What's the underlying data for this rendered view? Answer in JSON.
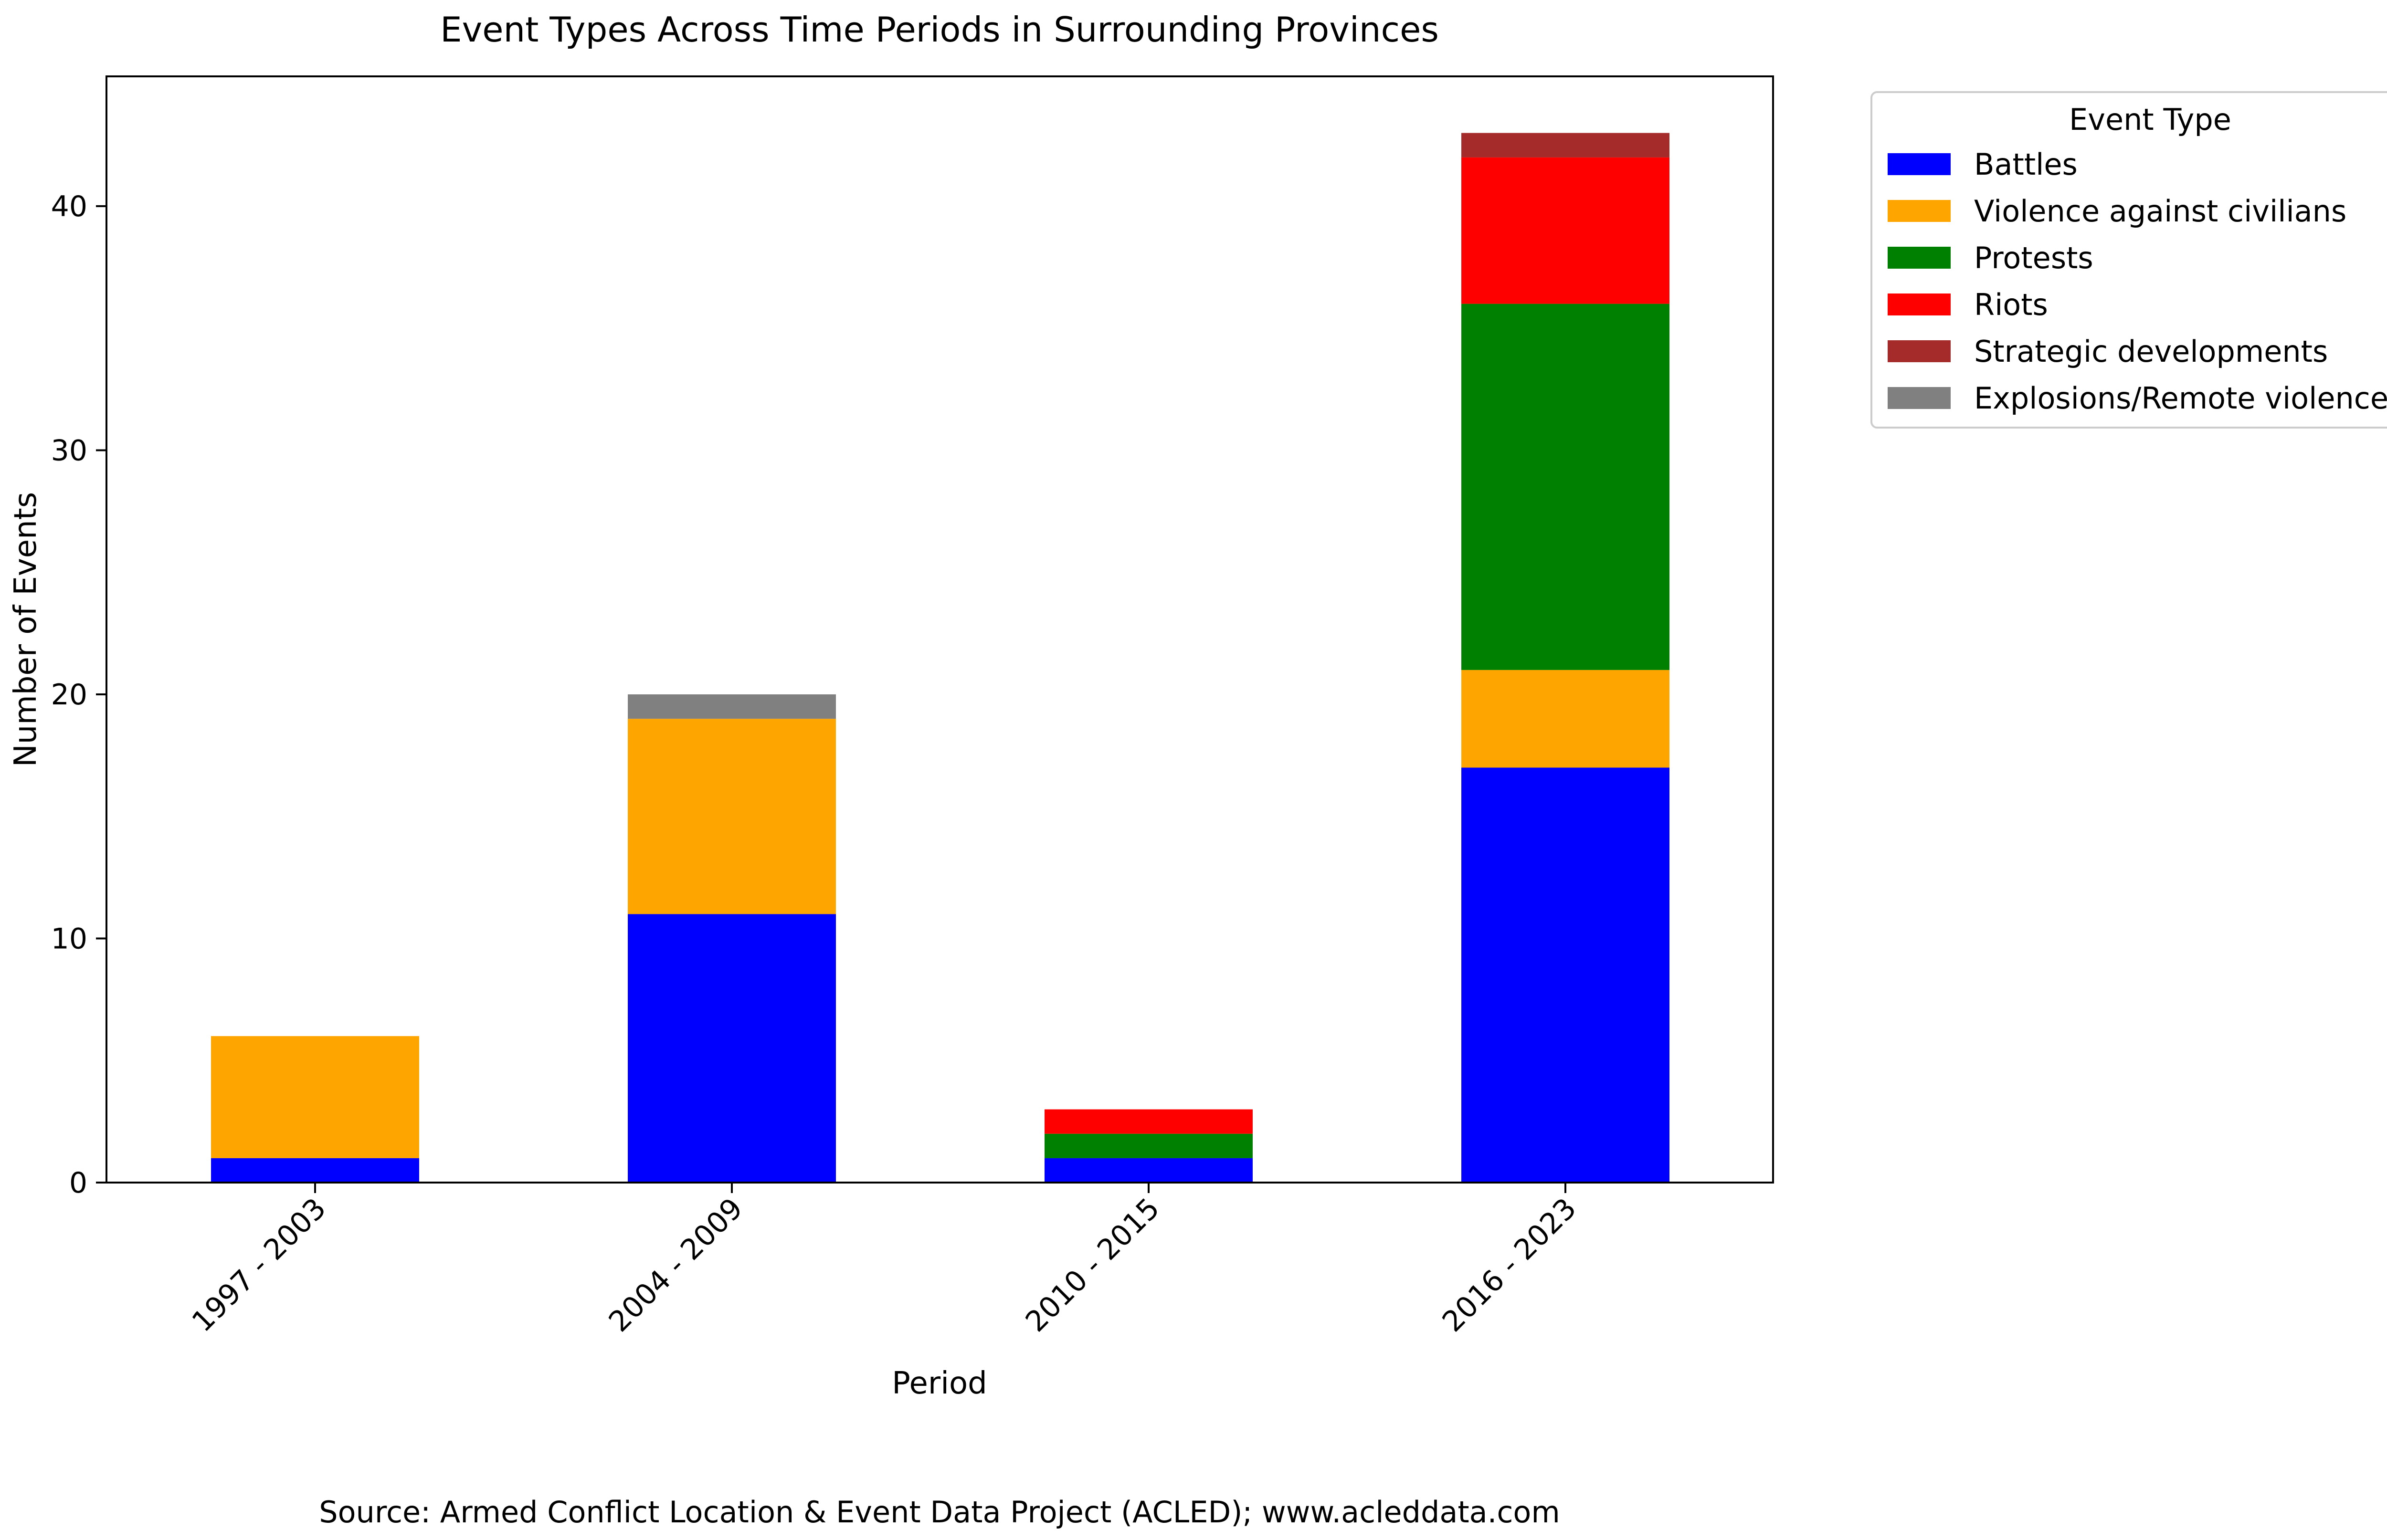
{
  "chart_data": {
    "type": "bar",
    "stacked": true,
    "title": "Event Types Across Time Periods in Surrounding Provinces",
    "xlabel": "Period",
    "ylabel": "Number of Events",
    "categories": [
      "1997 - 2003",
      "2004 - 2009",
      "2010 - 2015",
      "2016 - 2023"
    ],
    "yticks": [
      0,
      10,
      20,
      30,
      40
    ],
    "ylim": [
      0,
      45
    ],
    "grid": false,
    "legend": {
      "title": "Event Type",
      "placement": "outside-right-top"
    },
    "series": [
      {
        "name": "Battles",
        "color": "#0000ff",
        "values": [
          1,
          11,
          1,
          17
        ]
      },
      {
        "name": "Violence against civilians",
        "color": "#ffa500",
        "values": [
          5,
          8,
          0,
          4
        ]
      },
      {
        "name": "Protests",
        "color": "#008000",
        "values": [
          0,
          0,
          1,
          15
        ]
      },
      {
        "name": "Riots",
        "color": "#ff0000",
        "values": [
          0,
          0,
          1,
          6
        ]
      },
      {
        "name": "Strategic developments",
        "color": "#a52a2a",
        "values": [
          0,
          0,
          0,
          1
        ]
      },
      {
        "name": "Explosions/Remote violence",
        "color": "#808080",
        "values": [
          0,
          1,
          0,
          0
        ]
      }
    ]
  },
  "footer": {
    "source": "Source: Armed Conflict Location & Event Data Project (ACLED); www.acleddata.com"
  }
}
